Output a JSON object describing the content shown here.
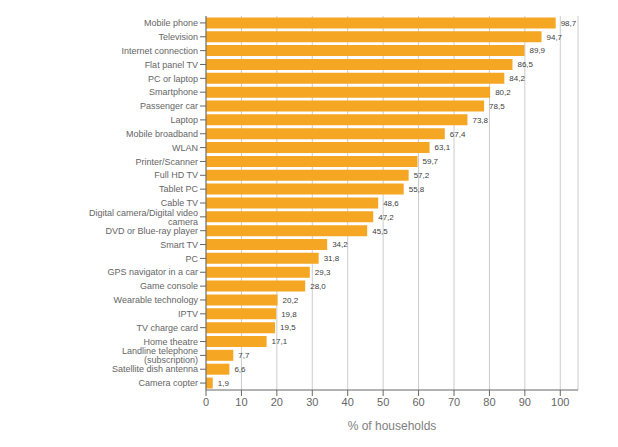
{
  "chart_data": {
    "type": "bar",
    "orientation": "horizontal",
    "categories": [
      "Camera copter",
      "Satellite dish antenna",
      "Landline telephone (subscription)",
      "Home theatre",
      "TV charge card",
      "IPTV",
      "Wearable technology",
      "Game console",
      "GPS navigator in a car",
      "PC",
      "Smart TV",
      "DVD or Blue-ray player",
      "Digital camera/Digital video camera",
      "Cable TV",
      "Tablet PC",
      "Full HD TV",
      "Printer/Scanner",
      "WLAN",
      "Mobile broadband",
      "Laptop",
      "Passenger car",
      "Smartphone",
      "PC or laptop",
      "Flat panel TV",
      "Internet connection",
      "Television",
      "Mobile phone"
    ],
    "values": [
      1.9,
      6.6,
      7.7,
      17.1,
      19.5,
      19.8,
      20.2,
      28.0,
      29.3,
      31.8,
      34.2,
      45.5,
      47.2,
      48.6,
      55.8,
      57.2,
      59.7,
      63.1,
      67.4,
      73.8,
      78.5,
      80.2,
      84.2,
      86.5,
      89.9,
      94.7,
      98.7
    ],
    "value_labels": [
      "1,9",
      "6,6",
      "7,7",
      "17,1",
      "19,5",
      "19,8",
      "20,2",
      "28,0",
      "29,3",
      "31,8",
      "34,2",
      "45,5",
      "47,2",
      "48,6",
      "55,8",
      "57,2",
      "59,7",
      "63,1",
      "67,4",
      "73,8",
      "78,5",
      "80,2",
      "84,2",
      "86,5",
      "89,9",
      "94,7",
      "98,7"
    ],
    "data_labels": true,
    "color": "#F5A623",
    "xlabel": "% of households",
    "xlim": [
      0,
      105
    ],
    "xticks": [
      0,
      10,
      20,
      30,
      40,
      50,
      60,
      70,
      80,
      90,
      100
    ],
    "grid": true
  }
}
